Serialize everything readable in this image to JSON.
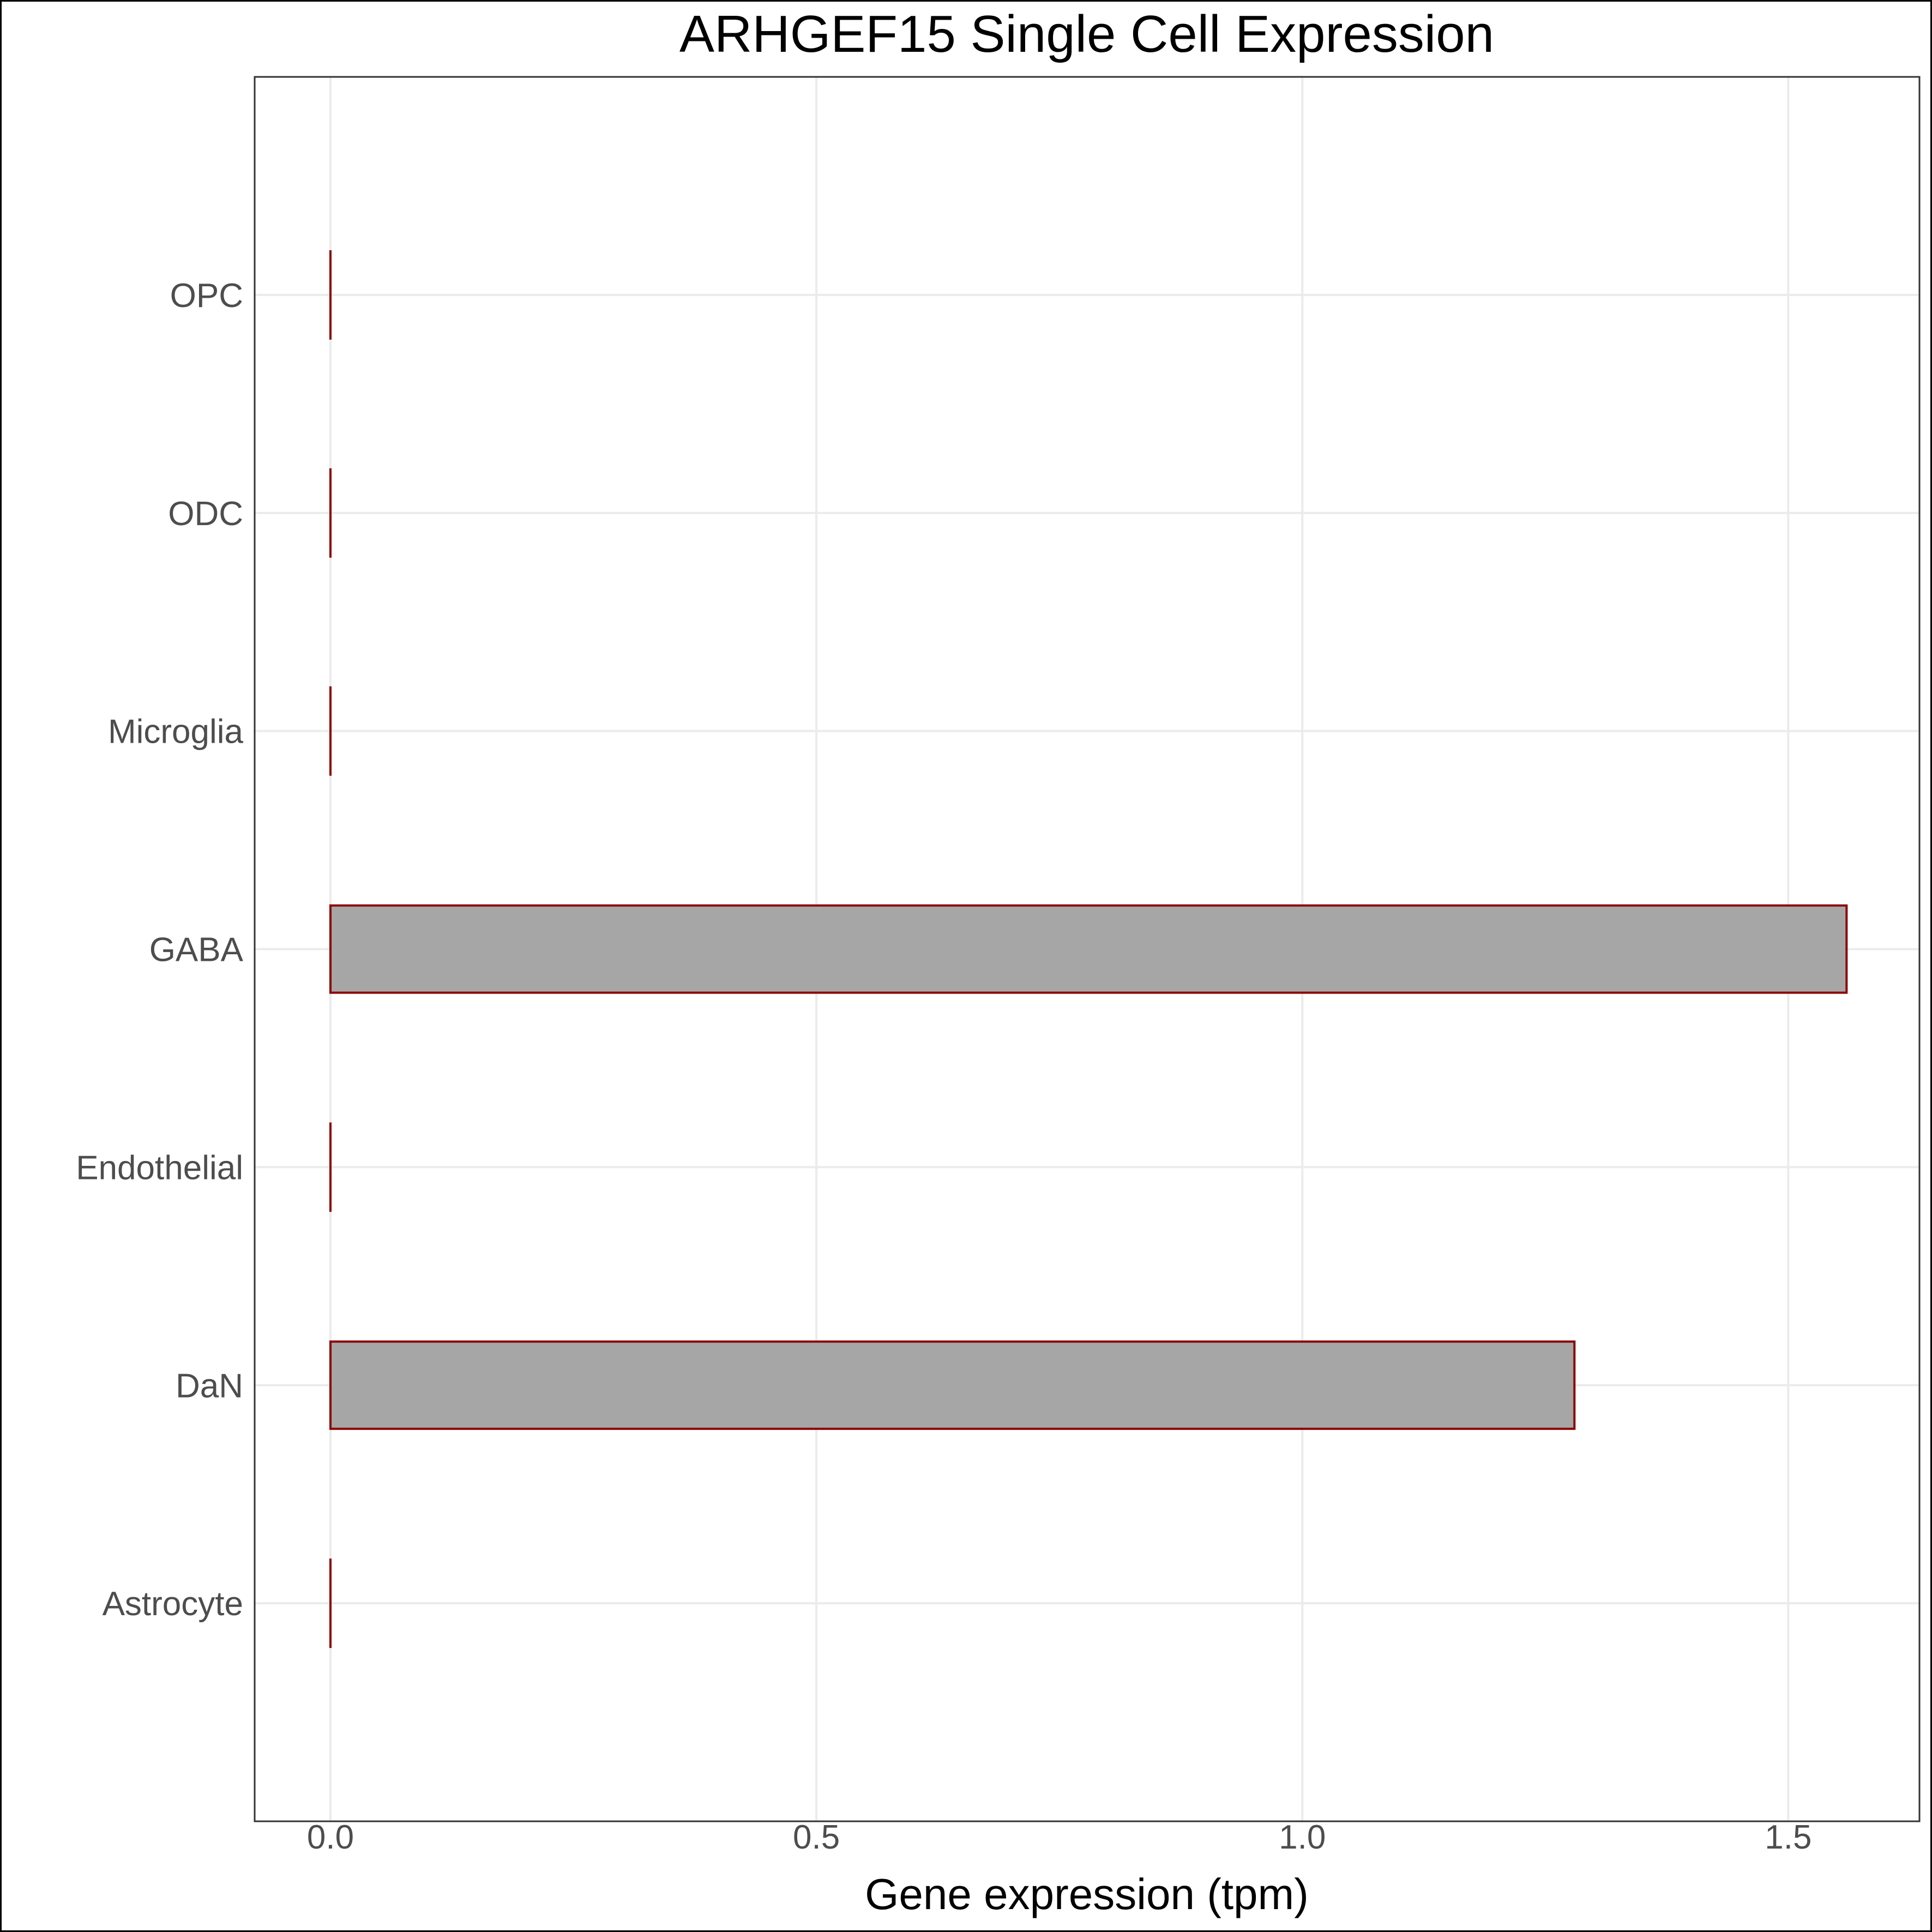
{
  "chart_data": {
    "type": "bar",
    "orientation": "horizontal",
    "title": "ARHGEF15 Single Cell Expression",
    "xlabel": "Gene expression (tpm)",
    "ylabel": "",
    "categories": [
      "Astrocyte",
      "DaN",
      "Endothelial",
      "GABA",
      "Microglia",
      "ODC",
      "OPC"
    ],
    "values": [
      0,
      1.28,
      0,
      1.56,
      0,
      0,
      0
    ],
    "xlim": [
      -0.078,
      1.635
    ],
    "xticks": [
      0,
      0.5,
      1,
      1.5
    ],
    "xtick_labels": [
      "0.0",
      "0.5",
      "1.0",
      "1.5"
    ],
    "grid": true,
    "colors": {
      "bar_fill": "#a6a6a6",
      "bar_stroke": "#8b0000",
      "grid": "#ebebeb",
      "panel_border": "#333333"
    }
  }
}
